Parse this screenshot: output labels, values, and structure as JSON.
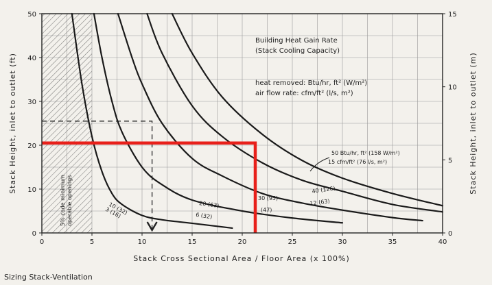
{
  "chart_data": {
    "type": "line",
    "caption": "Sizing Stack-Ventilation",
    "xlabel": "Stack Cross Sectional Area / Floor Area (x 100%)",
    "ylabel_left": "Stack Height, inlet to outlet (ft)",
    "ylabel_right": "Stack Height, inlet to outlet (m)",
    "xlim": [
      0,
      40
    ],
    "ylim_left": [
      0,
      50
    ],
    "ylim_right": [
      0,
      15
    ],
    "x_ticks": [
      "0",
      "5",
      "10",
      "15",
      "20",
      "25",
      "30",
      "35",
      "40"
    ],
    "y_ticks_left": [
      "0",
      "10",
      "20",
      "30",
      "40",
      "50"
    ],
    "y_ticks_right": [
      "0",
      "5",
      "10",
      "15"
    ],
    "grid": true,
    "shaded_region": {
      "x_range": [
        0,
        5
      ],
      "label_lines": [
        "5% code minimum",
        "operable openings"
      ]
    },
    "annotations": {
      "title_lines": [
        "Building Heat Gain Rate",
        "(Stack Cooling Capacity)"
      ],
      "units_lines": [
        "heat removed: Btu/hr, ft² (W/m²)",
        "air flow rate: cfm/ft² (l/s, m²)"
      ],
      "callout_lines": [
        "50 Btu/hr, ft² (158 W/m²)",
        "15 cfm/ft² (76 l/s, m²)"
      ]
    },
    "series": [
      {
        "name": "10 (32) / 3 (16)",
        "label_top": "10 (32)",
        "label_bottom": "3 (16)",
        "x": [
          3.0,
          4.0,
          5.0,
          6.0,
          7.0,
          8.0,
          10.0,
          12.0,
          15.0,
          19.0
        ],
        "y": [
          50,
          34,
          22,
          14,
          9,
          6.5,
          4,
          3,
          2.2,
          1.1
        ]
      },
      {
        "name": "20 (63) / 6 (32)",
        "label_top": "20 (63)",
        "label_bottom": "6 (32)",
        "x": [
          5.2,
          6.0,
          7.0,
          8.0,
          10.0,
          12.0,
          15.0,
          20.0,
          25.0,
          30.0
        ],
        "y": [
          50,
          40,
          30,
          23,
          15,
          11,
          7.5,
          5,
          3.4,
          2.3
        ]
      },
      {
        "name": "30 (95) / (47)",
        "label_top": "30 (95)",
        "label_bottom": "(47)",
        "x": [
          7.6,
          9.0,
          10.0,
          12.0,
          15.0,
          18.0,
          22.0,
          26.0,
          30.0,
          35.0,
          38.0
        ],
        "y": [
          50,
          40,
          34,
          25,
          17,
          13,
          9,
          6.8,
          5.2,
          3.5,
          2.8
        ]
      },
      {
        "name": "40 (126) / 12 (63)",
        "label_top": "40 (126)",
        "label_bottom": "12 (63)",
        "x": [
          10.5,
          12.0,
          15.0,
          18.0,
          22.0,
          26.0,
          30.0,
          35.0,
          40.0
        ],
        "y": [
          50,
          41,
          29,
          22,
          16,
          12,
          9.5,
          6.5,
          4.8
        ]
      },
      {
        "name": "50 (158) / 15 (76)",
        "x": [
          13.0,
          15.0,
          18.0,
          22.0,
          26.0,
          30.0,
          35.0,
          40.0
        ],
        "y": [
          50,
          41,
          31,
          22.5,
          16.5,
          12.5,
          9,
          6.2
        ]
      }
    ],
    "example_path": {
      "height_ft": 20.5,
      "area_pct": 21.3
    },
    "dashed_path": {
      "height_ft": 25.5,
      "area_pct": 11.0
    }
  }
}
